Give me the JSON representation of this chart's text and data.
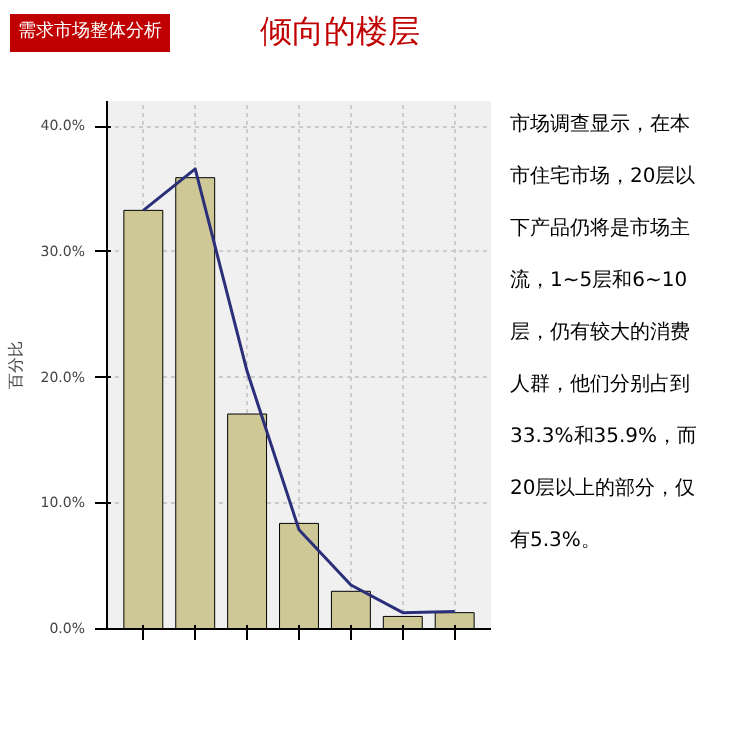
{
  "chart_data": {
    "type": "bar",
    "title": "倾向的楼层",
    "subtitle": "需求市场整体分析",
    "ylabel": "百分比",
    "categories": [
      null,
      null,
      null,
      null,
      null,
      null,
      null
    ],
    "series": [
      {
        "color": "#cdc896",
        "values": [
          33.3,
          35.9,
          17.1,
          8.4,
          3.0,
          1.0,
          1.3
        ]
      },
      {
        "type": "line",
        "color": "#2b2f7a",
        "values": [
          33.3,
          36.6,
          20.5,
          7.9,
          3.5,
          1.3,
          1.4
        ]
      }
    ],
    "ylim": [
      0,
      42
    ],
    "yticks": [
      {
        "value": 0,
        "label": "0.0%"
      },
      {
        "value": 10,
        "label": "10.0%"
      },
      {
        "value": 20,
        "label": "20.0%"
      },
      {
        "value": 30,
        "label": "30.0%"
      },
      {
        "value": 40,
        "label": "40.0%"
      }
    ],
    "grid": true,
    "annotations": [
      "市场调查显示，在本市住宅市场，20层以下产品仍将是市场主流，1~5层和6~10层，仍有较大的消费人群，他们分别占到33.3%和35.9%，而20层以上的部分，仅有5.3%。"
    ]
  }
}
